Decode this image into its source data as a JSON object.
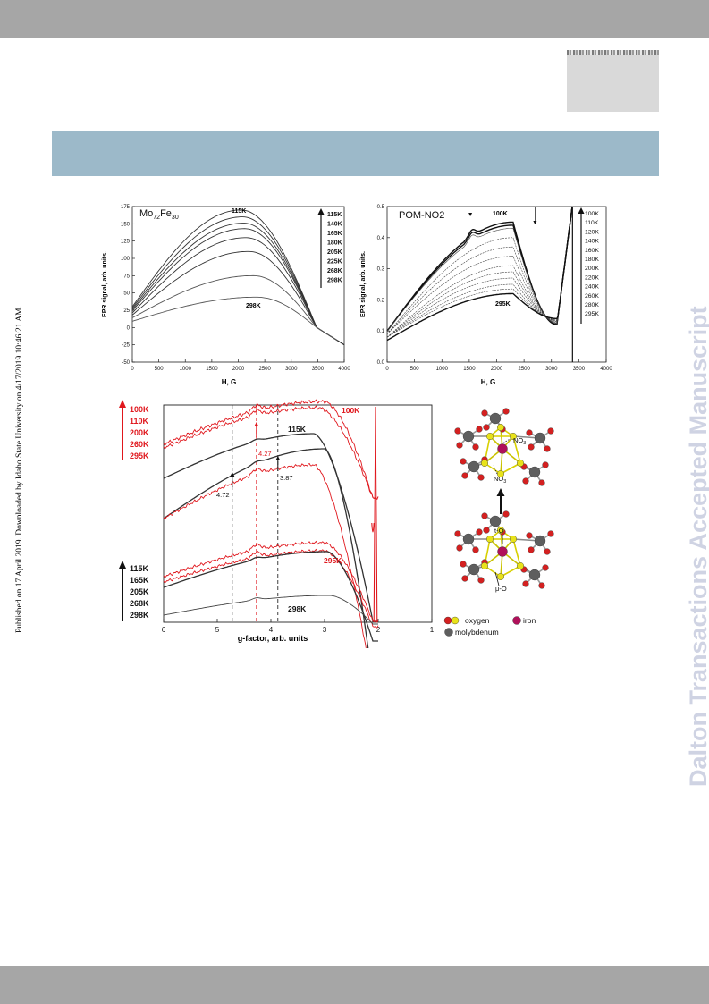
{
  "side_text": {
    "published": "Published on 17 April 2019. Downloaded by Idaho State University on 4/17/2019 10:46:21 AM.",
    "watermark": "Dalton Transactions Accepted Manuscript"
  },
  "colors": {
    "red": "#e0171d",
    "black": "#1a1a1a",
    "grey": "#555555",
    "header_band": "#9cb9c9",
    "bars": "#a6a6a6"
  },
  "chart_data": [
    {
      "type": "line",
      "title": "Mo72Fe30",
      "title_main": "Mo",
      "title_sub1": "72",
      "title_mid": "Fe",
      "title_sub2": "30",
      "xlabel": "H, G",
      "ylabel": "EPR signal, arb. units.",
      "xlim": [
        0,
        4000
      ],
      "ylim": [
        -50,
        175
      ],
      "xticks": [
        "0",
        "500",
        "1000",
        "1500",
        "2000",
        "2500",
        "3000",
        "3500",
        "4000"
      ],
      "yticks": [
        "175",
        "150",
        "125",
        "100",
        "75",
        "50",
        "25",
        "0",
        "-25",
        "-50"
      ],
      "legend": [
        "115K",
        "140K",
        "165K",
        "180K",
        "205K",
        "225K",
        "268K",
        "298K"
      ],
      "annotations": [
        "115K",
        "298K"
      ],
      "series": [
        {
          "name": "115K",
          "start": 30,
          "peak": 170,
          "peak_x": 2050
        },
        {
          "name": "140K",
          "start": 28,
          "peak": 160,
          "peak_x": 2080
        },
        {
          "name": "165K",
          "start": 26,
          "peak": 151,
          "peak_x": 2100
        },
        {
          "name": "180K",
          "start": 24,
          "peak": 143,
          "peak_x": 2120
        },
        {
          "name": "205K",
          "start": 21,
          "peak": 130,
          "peak_x": 2150
        },
        {
          "name": "225K",
          "start": 18,
          "peak": 110,
          "peak_x": 2200
        },
        {
          "name": "268K",
          "start": 14,
          "peak": 75,
          "peak_x": 2280
        },
        {
          "name": "298K",
          "start": 9,
          "peak": 44,
          "peak_x": 2350
        }
      ]
    },
    {
      "type": "line",
      "title": "POM-NO2",
      "xlabel": "H, G",
      "ylabel": "EPR signal, arb. units.",
      "xlim": [
        0,
        4000
      ],
      "ylim": [
        0.0,
        0.5
      ],
      "xticks": [
        "0",
        "500",
        "1000",
        "1500",
        "2000",
        "2500",
        "3000",
        "3500",
        "4000"
      ],
      "yticks": [
        "0.5",
        "0.4",
        "0.3",
        "0.2",
        "0.1",
        "0.0"
      ],
      "legend": [
        "100K",
        "110K",
        "120K",
        "140K",
        "160K",
        "180K",
        "200K",
        "220K",
        "240K",
        "260K",
        "280K",
        "295K"
      ],
      "annotations": [
        "100K",
        "295K"
      ],
      "series": [
        {
          "name": "100K",
          "start": 0.1,
          "peak": 0.45
        },
        {
          "name": "110K",
          "start": 0.1,
          "peak": 0.44
        },
        {
          "name": "120K",
          "start": 0.1,
          "peak": 0.43
        },
        {
          "name": "140K",
          "start": 0.09,
          "peak": 0.4
        },
        {
          "name": "160K",
          "start": 0.09,
          "peak": 0.37
        },
        {
          "name": "180K",
          "start": 0.09,
          "peak": 0.34
        },
        {
          "name": "200K",
          "start": 0.08,
          "peak": 0.31
        },
        {
          "name": "220K",
          "start": 0.08,
          "peak": 0.29
        },
        {
          "name": "240K",
          "start": 0.08,
          "peak": 0.27
        },
        {
          "name": "260K",
          "start": 0.08,
          "peak": 0.25
        },
        {
          "name": "280K",
          "start": 0.08,
          "peak": 0.235
        },
        {
          "name": "295K",
          "start": 0.07,
          "peak": 0.22
        }
      ]
    },
    {
      "type": "line",
      "xlabel": "g-factor, arb. units",
      "xlim": [
        6,
        1
      ],
      "xticks": [
        "6",
        "5",
        "4",
        "3",
        "2",
        "1"
      ],
      "legend_red": [
        "100K",
        "110K",
        "200K",
        "260K",
        "295K"
      ],
      "legend_black": [
        "115K",
        "165K",
        "205K",
        "268K",
        "298K"
      ],
      "annotations": {
        "red_top": "100K",
        "black_top": "115K",
        "red_bottom": "295K",
        "black_bottom": "298K",
        "g1": "4.72",
        "g2": "4.27",
        "g3": "3.87"
      }
    }
  ],
  "structure": {
    "labels": {
      "no3_top": "NO",
      "no3_top_sub": "3",
      "no3_bottom": "NO",
      "no3_bottom_sub": "3",
      "t_o": "t-O",
      "mu_o": "μ-O"
    },
    "legend": {
      "oxygen": "oxygen",
      "iron": "iron",
      "molybdenum": "molybdenum"
    }
  }
}
